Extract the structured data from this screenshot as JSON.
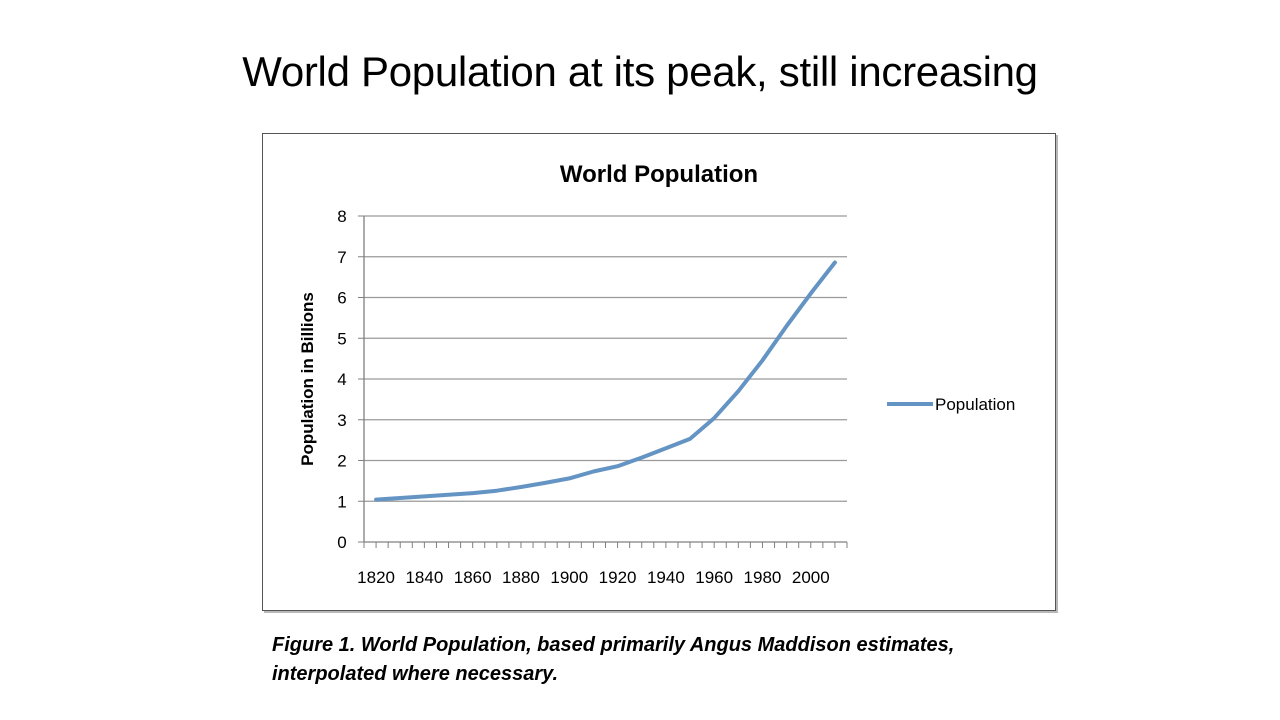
{
  "slide": {
    "title": "World Population at its peak, still increasing",
    "caption_line1": "Figure 1. World Population, based primarily Angus Maddison estimates,",
    "caption_line2": "interpolated where necessary."
  },
  "colors": {
    "line": "#6494c4",
    "grid": "#9a9a9a",
    "axis": "#808080"
  },
  "chart_data": {
    "type": "line",
    "title": "World Population",
    "xlabel": "",
    "ylabel": "Population in Billions",
    "ylim": [
      0,
      8
    ],
    "xlim": [
      1815,
      2015
    ],
    "yticks": [
      0,
      1,
      2,
      3,
      4,
      5,
      6,
      7,
      8
    ],
    "xticks": [
      1820,
      1840,
      1860,
      1880,
      1900,
      1920,
      1940,
      1960,
      1980,
      2000
    ],
    "grid": true,
    "legend": "right",
    "series": [
      {
        "name": "Population",
        "x": [
          1820,
          1830,
          1840,
          1850,
          1860,
          1870,
          1880,
          1890,
          1900,
          1910,
          1920,
          1930,
          1940,
          1950,
          1960,
          1970,
          1980,
          1990,
          2000,
          2010
        ],
        "y": [
          1.04,
          1.08,
          1.12,
          1.16,
          1.2,
          1.26,
          1.35,
          1.45,
          1.56,
          1.73,
          1.86,
          2.07,
          2.3,
          2.53,
          3.04,
          3.7,
          4.46,
          5.3,
          6.1,
          6.86
        ]
      }
    ]
  }
}
